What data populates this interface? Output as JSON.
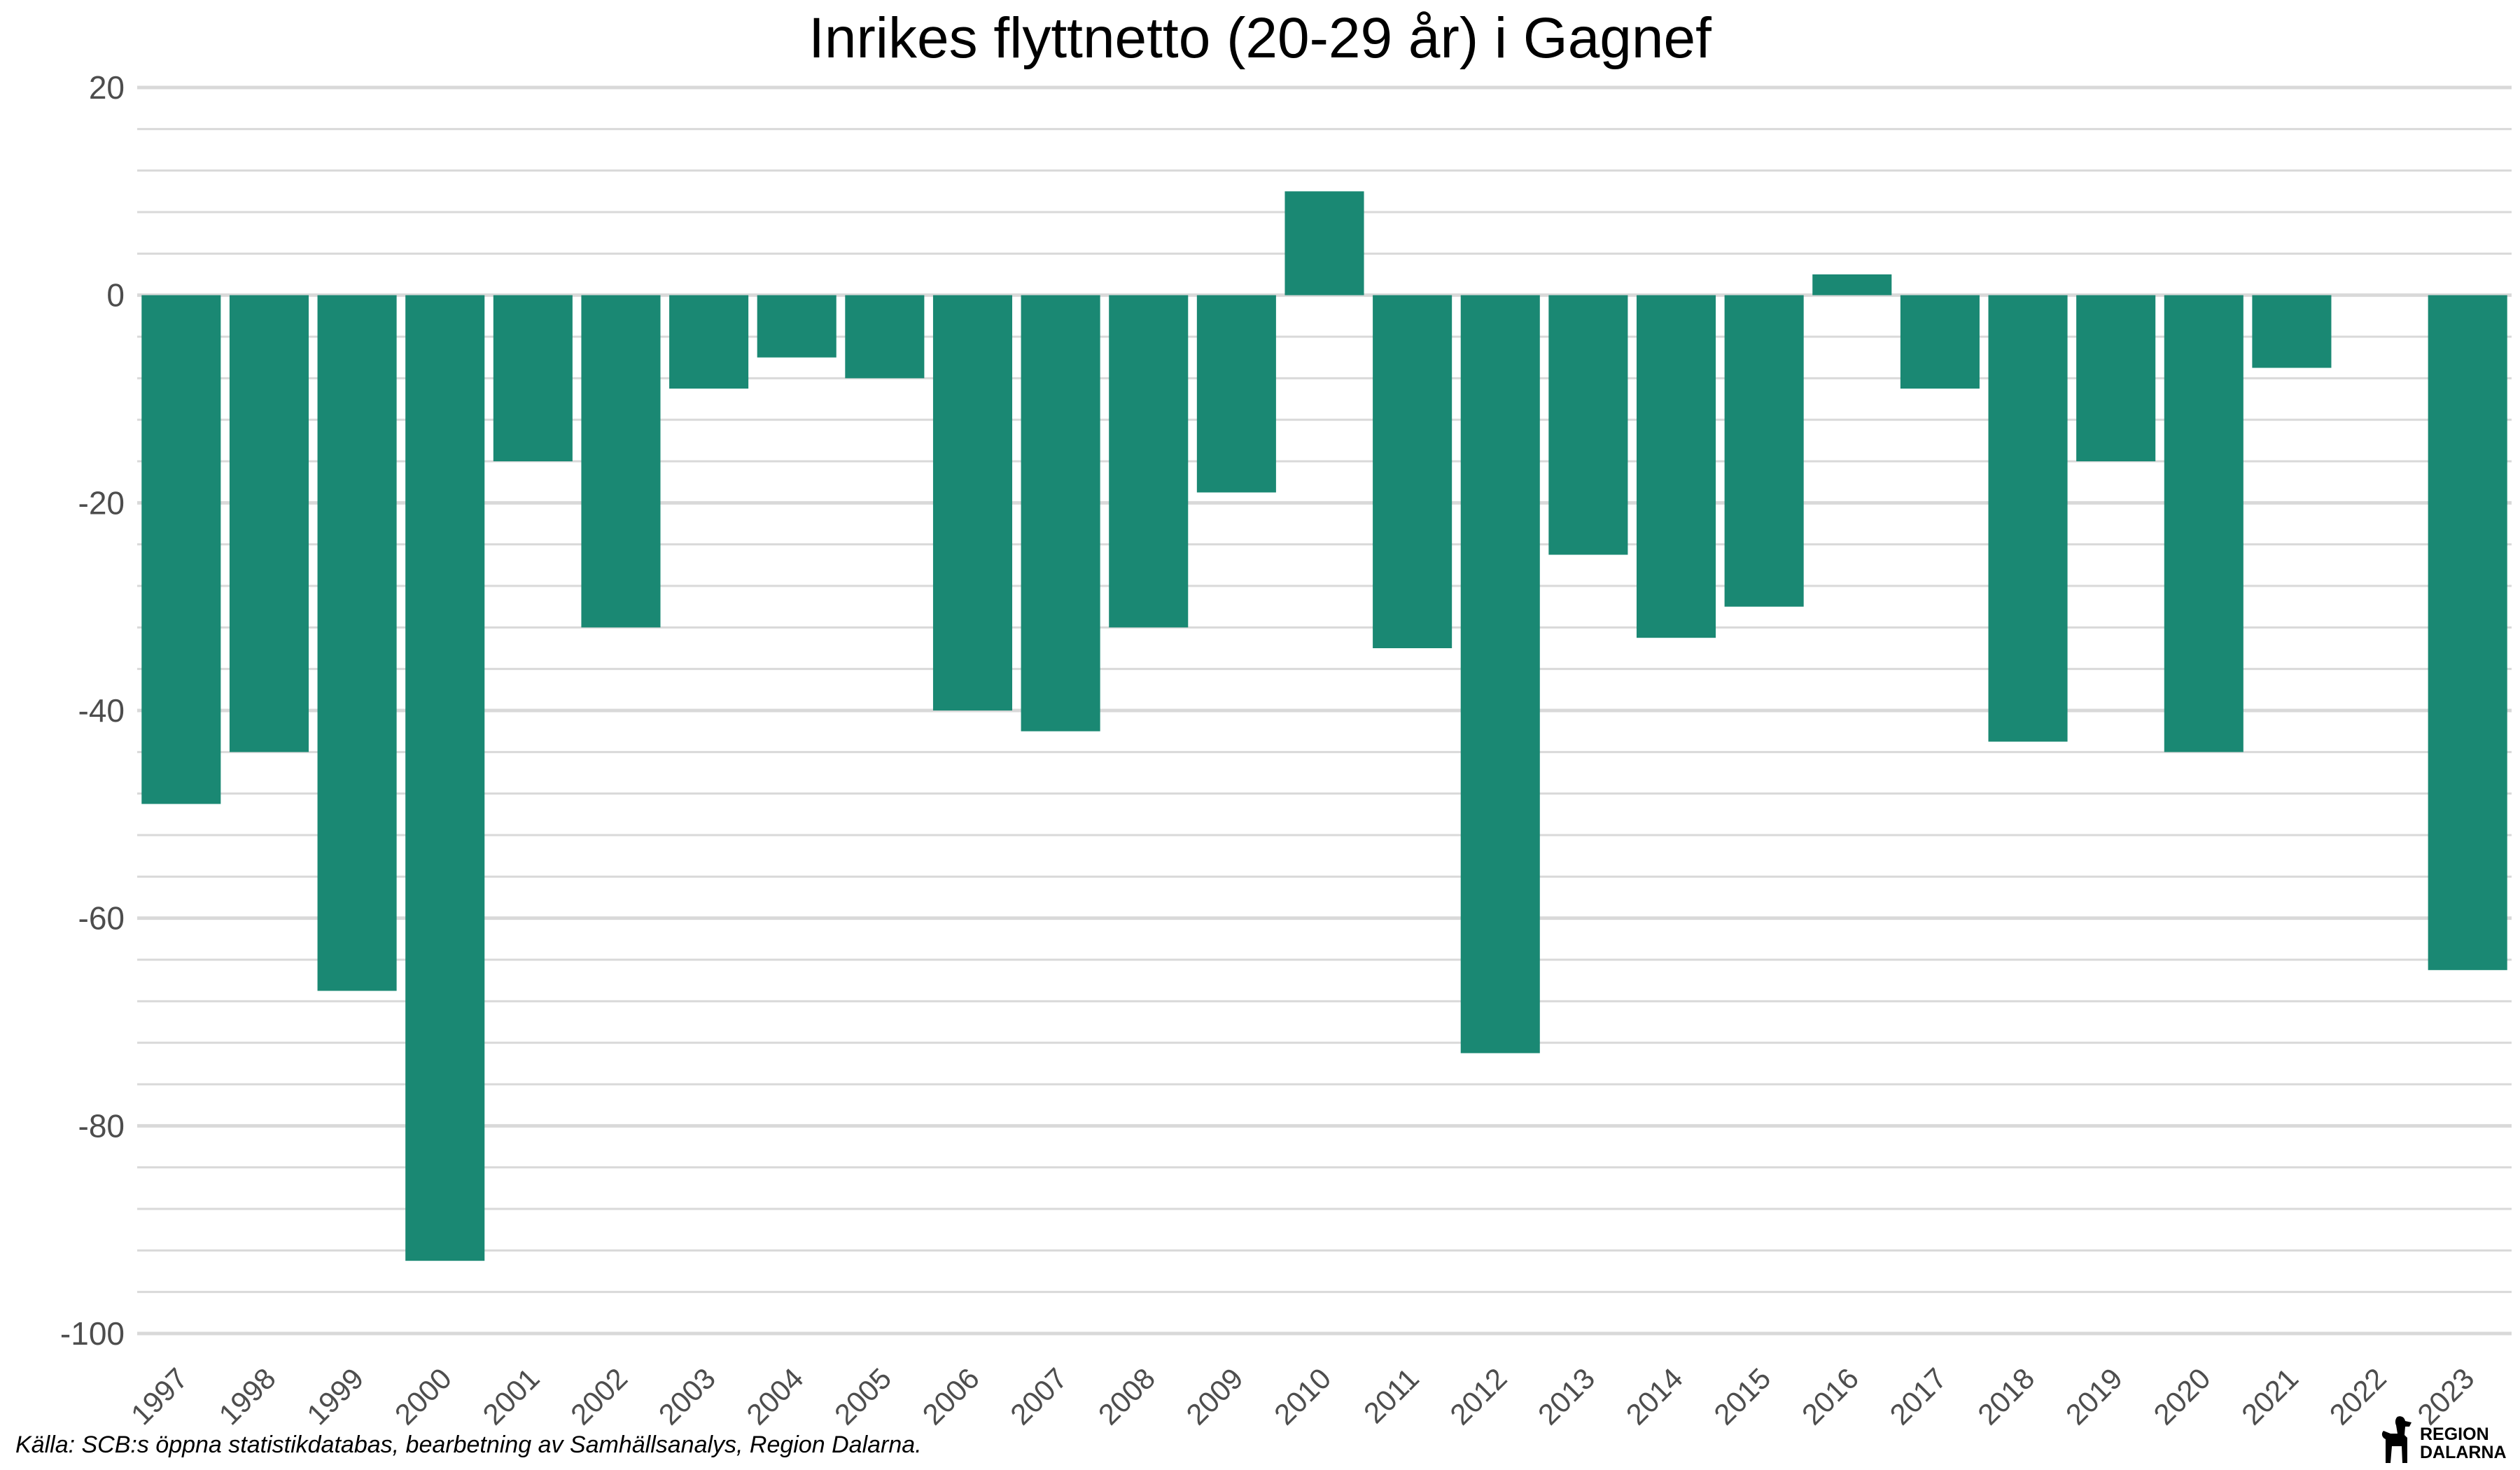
{
  "chart_data": {
    "type": "bar",
    "title": "Inrikes flyttnetto (20-29 år) i Gagnef",
    "xlabel": "",
    "ylabel": "",
    "ylim": [
      -100,
      20
    ],
    "yticks": [
      "20",
      "0",
      "-20",
      "-40",
      "-60",
      "-80",
      "-100"
    ],
    "categories": [
      "1997",
      "1998",
      "1999",
      "2000",
      "2001",
      "2002",
      "2003",
      "2004",
      "2005",
      "2006",
      "2007",
      "2008",
      "2009",
      "2010",
      "2011",
      "2012",
      "2013",
      "2014",
      "2015",
      "2016",
      "2017",
      "2018",
      "2019",
      "2020",
      "2021",
      "2022",
      "2023"
    ],
    "values": [
      -49,
      -44,
      -67,
      -93,
      -16,
      -32,
      -9,
      -6,
      -8,
      -40,
      -42,
      -32,
      -19,
      10,
      -34,
      -73,
      -25,
      -33,
      -30,
      2,
      -9,
      -43,
      -16,
      -44,
      -7,
      0,
      -65
    ],
    "bar_color": "#1a8873",
    "grid": true,
    "legend": "none"
  },
  "caption": "Källa: SCB:s öppna statistikdatabas, bearbetning av Samhällsanalys, Region Dalarna.",
  "logo": {
    "line1": "REGION",
    "line2": "DALARNA",
    "icon": "dala-horse-icon"
  }
}
